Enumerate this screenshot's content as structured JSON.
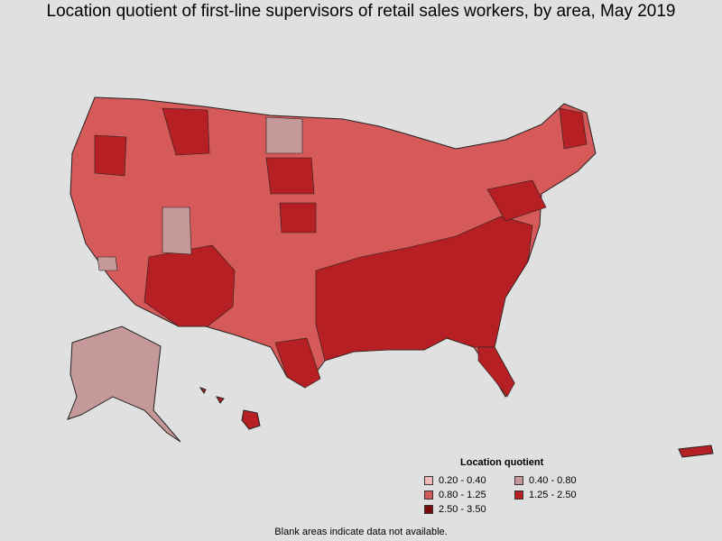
{
  "title": "Location quotient of first-line supervisors of retail sales workers, by area, May 2019",
  "legend": {
    "title": "Location quotient",
    "items": [
      {
        "label": "0.20 - 0.40",
        "color": "#f4b9b9"
      },
      {
        "label": "0.40 - 0.80",
        "color": "#c59999"
      },
      {
        "label": "0.80 - 1.25",
        "color": "#d65a5a"
      },
      {
        "label": "1.25 - 2.50",
        "color": "#b61f23"
      },
      {
        "label": "2.50 - 3.50",
        "color": "#7a0a0f"
      }
    ]
  },
  "note": "Blank areas indicate data not available."
}
